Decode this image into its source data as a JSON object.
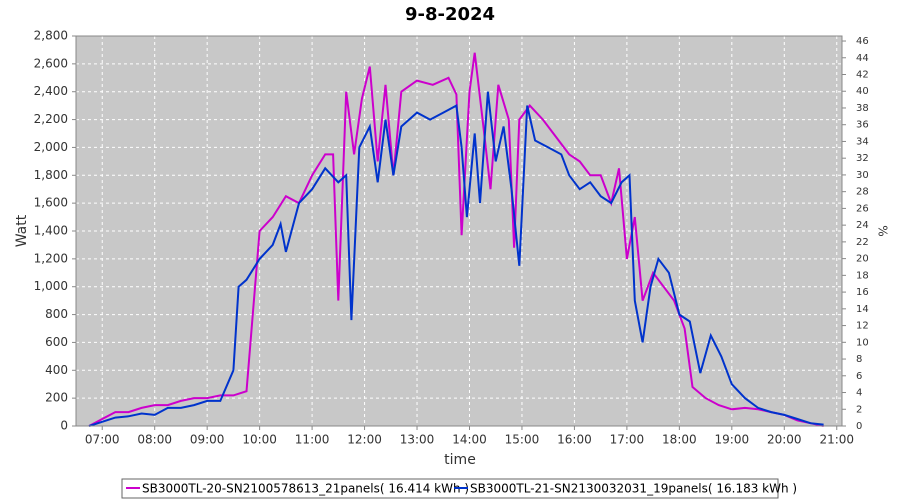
{
  "chart_data": {
    "type": "line",
    "title": "9-8-2024",
    "x_label": "time",
    "y_label": "Watt",
    "y2_label": "%",
    "xlim": [
      6.5,
      21.1
    ],
    "xticks": [
      {
        "value": 7,
        "label": "07:00"
      },
      {
        "value": 8,
        "label": "08:00"
      },
      {
        "value": 9,
        "label": "09:00"
      },
      {
        "value": 10,
        "label": "10:00"
      },
      {
        "value": 11,
        "label": "11:00"
      },
      {
        "value": 12,
        "label": "12:00"
      },
      {
        "value": 13,
        "label": "13:00"
      },
      {
        "value": 14,
        "label": "14:00"
      },
      {
        "value": 15,
        "label": "15:00"
      },
      {
        "value": 16,
        "label": "16:00"
      },
      {
        "value": 17,
        "label": "17:00"
      },
      {
        "value": 18,
        "label": "18:00"
      },
      {
        "value": 19,
        "label": "19:00"
      },
      {
        "value": 20,
        "label": "20:00"
      },
      {
        "value": 21,
        "label": "21:00"
      }
    ],
    "ylim": [
      0,
      2800
    ],
    "yticks": [
      0,
      200,
      400,
      600,
      800,
      {
        "value": 1000,
        "label": "1,000"
      },
      {
        "value": 1200,
        "label": "1,200"
      },
      {
        "value": 1400,
        "label": "1,400"
      },
      {
        "value": 1600,
        "label": "1,600"
      },
      {
        "value": 1800,
        "label": "1,800"
      },
      {
        "value": 2000,
        "label": "2,000"
      },
      {
        "value": 2200,
        "label": "2,200"
      },
      {
        "value": 2400,
        "label": "2,400"
      },
      {
        "value": 2600,
        "label": "2,600"
      },
      {
        "value": 2800,
        "label": "2,800"
      }
    ],
    "y2lim": [
      0,
      46.6
    ],
    "y2ticks": [
      0,
      2,
      4,
      6,
      8,
      10,
      12,
      14,
      16,
      18,
      20,
      22,
      24,
      26,
      28,
      30,
      32,
      34,
      36,
      38,
      40,
      42,
      44,
      46
    ],
    "grid": true,
    "legend": "bottom",
    "series": [
      {
        "name": "SB3000TL-20-SN2100578613_21panels( 16.414 kWh )",
        "color": "#cc00cc",
        "x": [
          6.75,
          7.0,
          7.25,
          7.5,
          7.75,
          8.0,
          8.25,
          8.5,
          8.75,
          9.0,
          9.25,
          9.5,
          9.75,
          10.0,
          10.25,
          10.5,
          10.75,
          11.0,
          11.25,
          11.4,
          11.5,
          11.65,
          11.8,
          11.95,
          12.1,
          12.25,
          12.4,
          12.55,
          12.7,
          13.0,
          13.3,
          13.6,
          13.75,
          13.85,
          14.0,
          14.1,
          14.25,
          14.4,
          14.55,
          14.75,
          14.85,
          14.95,
          15.15,
          15.4,
          15.6,
          15.9,
          16.1,
          16.3,
          16.5,
          16.7,
          16.85,
          17.0,
          17.15,
          17.3,
          17.5,
          17.7,
          17.9,
          18.1,
          18.25,
          18.5,
          18.75,
          19.0,
          19.25,
          19.5,
          19.75,
          20.0,
          20.25,
          20.5,
          20.75
        ],
        "values": [
          0,
          50,
          100,
          100,
          130,
          150,
          150,
          180,
          200,
          200,
          220,
          220,
          250,
          1400,
          1500,
          1650,
          1600,
          1800,
          1950,
          1950,
          900,
          2400,
          1950,
          2350,
          2580,
          1900,
          2450,
          1800,
          2400,
          2480,
          2450,
          2500,
          2380,
          1370,
          2400,
          2680,
          2200,
          1700,
          2450,
          2200,
          1280,
          2200,
          2300,
          2200,
          2100,
          1950,
          1900,
          1800,
          1800,
          1600,
          1850,
          1200,
          1500,
          900,
          1100,
          1000,
          900,
          700,
          280,
          200,
          150,
          120,
          130,
          120,
          100,
          80,
          40,
          20,
          0
        ]
      },
      {
        "name": "SB3000TL-21-SN2130032031_19panels( 16.183 kWh )",
        "color": "#0033cc",
        "x": [
          6.75,
          7.0,
          7.25,
          7.5,
          7.75,
          8.0,
          8.25,
          8.5,
          8.75,
          9.0,
          9.25,
          9.5,
          9.6,
          9.75,
          10.0,
          10.25,
          10.4,
          10.5,
          10.75,
          11.0,
          11.25,
          11.5,
          11.65,
          11.75,
          11.9,
          12.1,
          12.25,
          12.4,
          12.55,
          12.7,
          13.0,
          13.25,
          13.5,
          13.75,
          13.85,
          13.95,
          14.1,
          14.2,
          14.35,
          14.5,
          14.65,
          14.8,
          14.95,
          15.1,
          15.25,
          15.5,
          15.75,
          15.9,
          16.1,
          16.3,
          16.5,
          16.7,
          16.9,
          17.05,
          17.15,
          17.3,
          17.45,
          17.6,
          17.8,
          18.0,
          18.2,
          18.4,
          18.6,
          18.8,
          19.0,
          19.25,
          19.5,
          19.75,
          20.0,
          20.25,
          20.5,
          20.75
        ],
        "values": [
          0,
          30,
          60,
          70,
          90,
          80,
          130,
          130,
          150,
          180,
          180,
          400,
          1000,
          1050,
          1200,
          1300,
          1450,
          1250,
          1600,
          1700,
          1850,
          1750,
          1800,
          760,
          2000,
          2150,
          1750,
          2200,
          1800,
          2150,
          2250,
          2200,
          2250,
          2300,
          2000,
          1500,
          2100,
          1600,
          2400,
          1900,
          2150,
          1700,
          1150,
          2300,
          2050,
          2000,
          1950,
          1800,
          1700,
          1750,
          1650,
          1600,
          1750,
          1800,
          900,
          600,
          1000,
          1200,
          1100,
          800,
          750,
          380,
          650,
          500,
          300,
          200,
          130,
          100,
          80,
          50,
          20,
          10
        ]
      }
    ]
  }
}
